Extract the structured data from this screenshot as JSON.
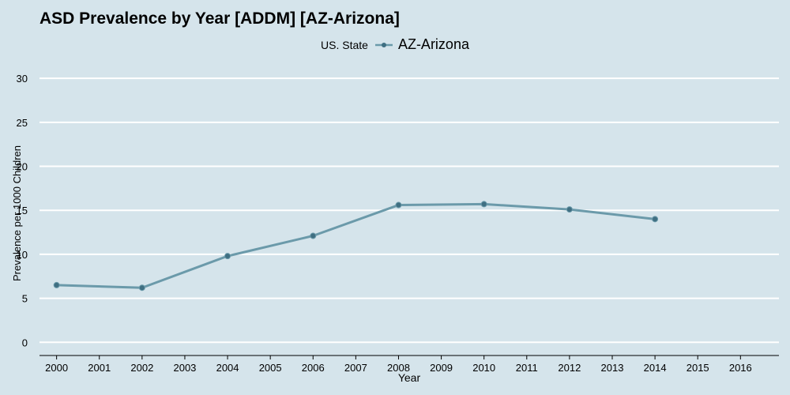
{
  "chart_data": {
    "type": "line",
    "title": "ASD Prevalence by Year [ADDM] [AZ-Arizona]",
    "xlabel": "Year",
    "ylabel": "Prevalence per 1000 Children",
    "legend_title": "US. State",
    "legend_placement": "top",
    "grid": true,
    "xlim": [
      1999.6,
      2016.9
    ],
    "ylim": [
      -1.5,
      31
    ],
    "x_ticks": [
      "2000",
      "2001",
      "2002",
      "2003",
      "2004",
      "2005",
      "2006",
      "2007",
      "2008",
      "2009",
      "2010",
      "2011",
      "2012",
      "2013",
      "2014",
      "2015",
      "2016"
    ],
    "y_ticks": [
      "0",
      "5",
      "10",
      "15",
      "20",
      "25",
      "30"
    ],
    "series": [
      {
        "name": "AZ-Arizona",
        "color": "#6b9aaa",
        "marker_color": "#3f6f82",
        "x": [
          2000,
          2002,
          2004,
          2006,
          2008,
          2010,
          2012,
          2014
        ],
        "y": [
          6.5,
          6.2,
          9.8,
          12.1,
          15.6,
          15.7,
          15.1,
          14.0
        ]
      }
    ]
  }
}
